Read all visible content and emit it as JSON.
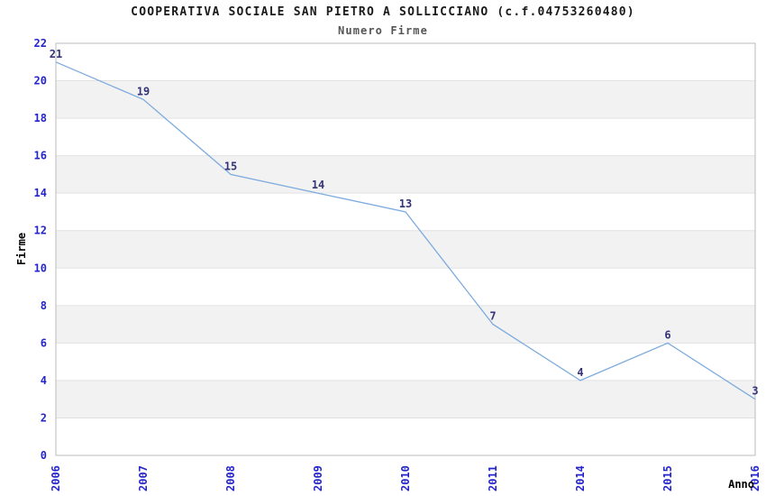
{
  "chart_data": {
    "type": "line",
    "title": "COOPERATIVA SOCIALE SAN PIETRO A SOLLICCIANO (c.f.04753260480)",
    "subtitle": "Numero Firme",
    "xlabel": "Anno",
    "ylabel": "Firme",
    "categories": [
      "2006",
      "2007",
      "2008",
      "2009",
      "2010",
      "2011",
      "2014",
      "2015",
      "2016"
    ],
    "values": [
      21,
      19,
      15,
      14,
      13,
      7,
      4,
      6,
      3
    ],
    "ylim": [
      0,
      22
    ],
    "ytick_step": 2,
    "grid": "horizontal-bands-alternating",
    "legend": "none",
    "colors": {
      "line": "#7dabde",
      "tick_label": "#2424cc",
      "point_label": "#333377",
      "band": "#f2f2f2",
      "gridline": "#e2e2e2",
      "plot_border": "#bbbbbb",
      "title": "#1a1a1a",
      "subtitle": "#555555",
      "axis_label": "#000000",
      "background": "#ffffff"
    }
  }
}
